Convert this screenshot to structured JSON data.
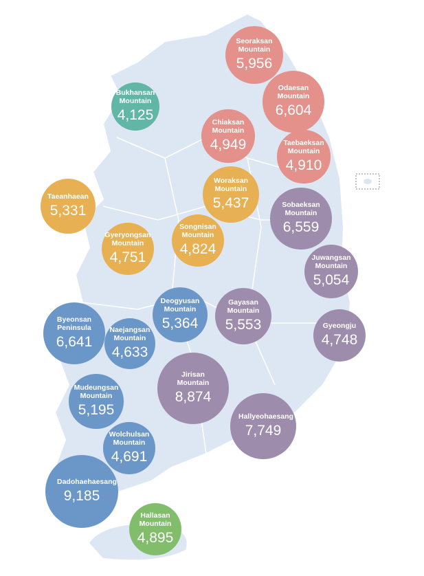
{
  "chart_data": {
    "type": "bubble",
    "labels": [
      "Seoraksan Mountain",
      "Bukhansan Mountain",
      "Odaesan Mountain",
      "Chiaksan Mountain",
      "Taebaeksan Mountain",
      "Woraksan Mountain",
      "Taeanhaean",
      "Sobaeksan Mountain",
      "Gyeryongsan Mountain",
      "Songnisan Mountain",
      "Juwangsan Mountain",
      "Deogyusan Mountain",
      "Gayasan Mountain",
      "Byeonsan Peninsula",
      "Naejangsan Mountain",
      "Gyeongju",
      "Jirisan Mountain",
      "Mudeungsan Mountain",
      "Hallyeohaesang",
      "Wolchulsan Mountain",
      "Dadohaehaesang",
      "Hallasan Mountain"
    ],
    "values": [
      5956,
      4125,
      6604,
      4949,
      4910,
      5437,
      5331,
      6559,
      4751,
      4824,
      5054,
      5364,
      5553,
      6641,
      4633,
      4748,
      8874,
      5195,
      7749,
      4691,
      9185,
      4895
    ],
    "value_labels": [
      "5,956",
      "4,125",
      "6,604",
      "4,949",
      "4,910",
      "5,437",
      "5,331",
      "6,559",
      "4,751",
      "4,824",
      "5,054",
      "5,364",
      "5,553",
      "6,641",
      "4,633",
      "4,748",
      "8,874",
      "5,195",
      "7,749",
      "4,691",
      "9,185",
      "4,895"
    ],
    "colors": [
      "#e3918a",
      "#62b6a6",
      "#e3918a",
      "#e3918a",
      "#e3918a",
      "#e7b052",
      "#e7b052",
      "#9d8cab",
      "#e7b052",
      "#e7b052",
      "#9d8cab",
      "#6b96c8",
      "#9d8cab",
      "#6b96c8",
      "#6b96c8",
      "#9d8cab",
      "#9d8cab",
      "#6b96c8",
      "#9d8cab",
      "#6b96c8",
      "#6b96c8",
      "#82bd6c"
    ]
  }
}
